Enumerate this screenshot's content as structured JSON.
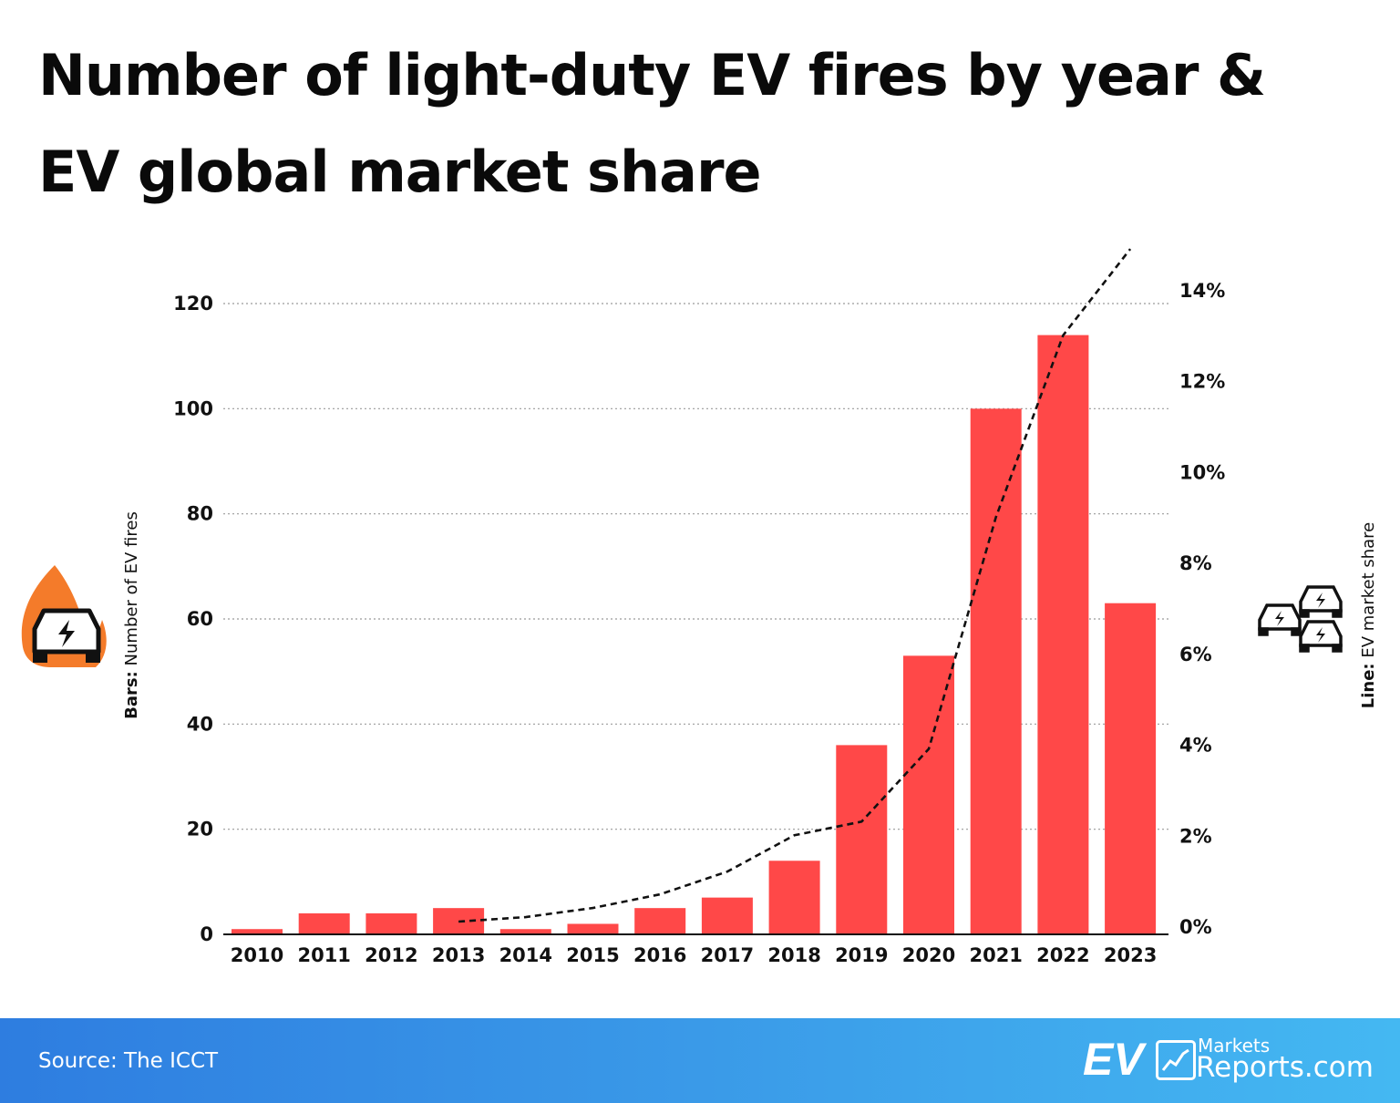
{
  "title_line1": "Number of light-duty EV fires by year &",
  "title_line2": "EV global market share",
  "source": "Source: The ICCT",
  "logo": {
    "ev": "EV",
    "markets": "Markets",
    "reports": "Reports.com"
  },
  "colors": {
    "bar": "#ff4848",
    "line": "#111111",
    "fire_icon": "#f47b2a",
    "footer_start": "#2e7de0",
    "footer_end": "#44b8f2"
  },
  "icons": {
    "left": "car-on-fire-icon",
    "right": "electric-cars-icon"
  },
  "chart_data": {
    "type": "bar+line",
    "title": "Number of light-duty EV fires by year & EV global market share",
    "categories": [
      "2010",
      "2011",
      "2012",
      "2013",
      "2014",
      "2015",
      "2016",
      "2017",
      "2018",
      "2019",
      "2020",
      "2021",
      "2022",
      "2023"
    ],
    "series": [
      {
        "name": "Number of EV fires",
        "type": "bar",
        "axis": "left",
        "values": [
          1,
          4,
          4,
          5,
          1,
          2,
          5,
          7,
          14,
          36,
          53,
          100,
          114,
          63
        ]
      },
      {
        "name": "EV market share",
        "type": "line",
        "axis": "right",
        "style": "dashed",
        "unit": "%",
        "values": [
          null,
          null,
          null,
          0.1,
          0.2,
          0.4,
          0.7,
          1.2,
          2.0,
          2.3,
          3.9,
          9.0,
          13.0,
          14.9
        ]
      }
    ],
    "left_axis": {
      "label_bold": "Bars:",
      "label": " Number of EV fires",
      "range": [
        0,
        120
      ],
      "ticks": [
        "0",
        "20",
        "40",
        "60",
        "80",
        "100",
        "120"
      ]
    },
    "right_axis": {
      "label_bold": "Line:",
      "label": " EV market share",
      "range": [
        0,
        14
      ],
      "ticks": [
        "0%",
        "2%",
        "4%",
        "6%",
        "8%",
        "10%",
        "12%",
        "14%"
      ]
    },
    "grid": true
  }
}
